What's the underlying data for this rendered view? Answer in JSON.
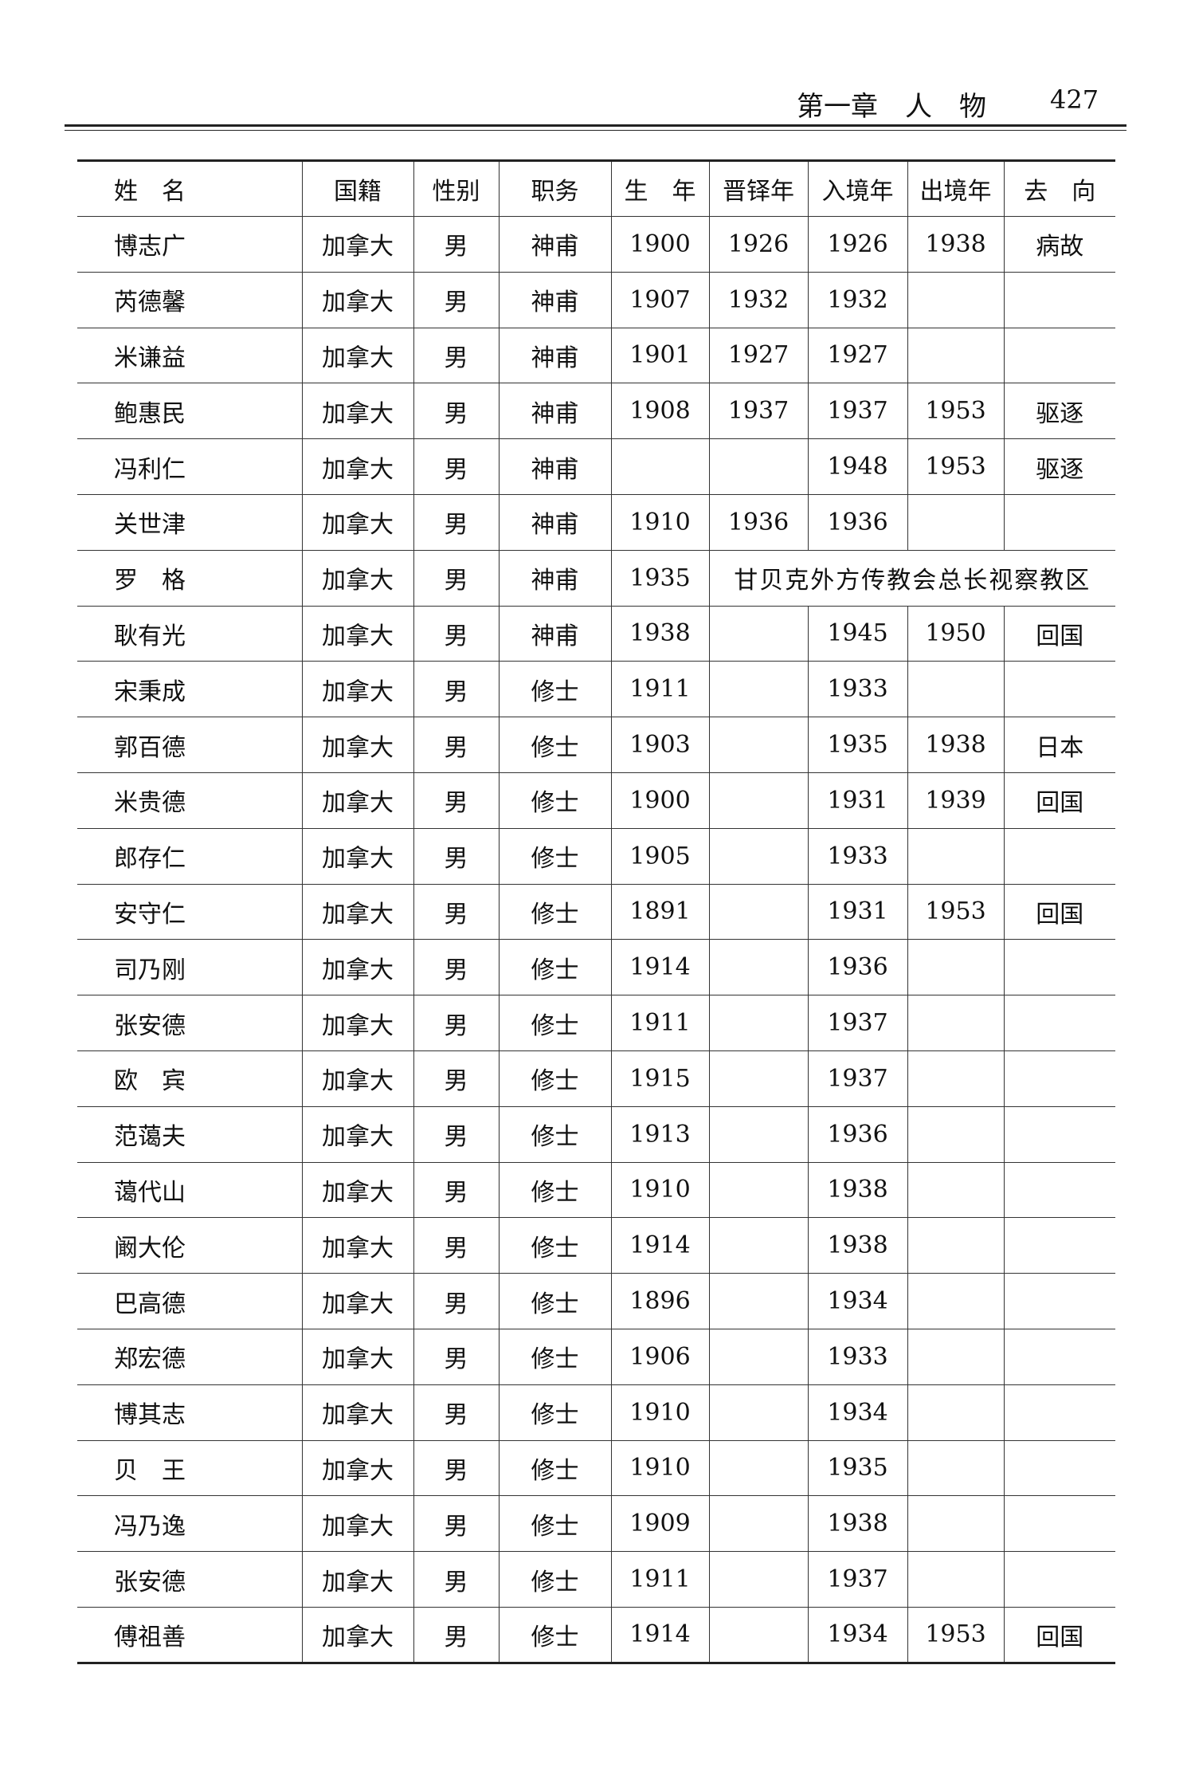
{
  "header": {
    "chapter": "第一章　人　物",
    "page": "427"
  },
  "table": {
    "columns": [
      "姓　名",
      "国籍",
      "性别",
      "职务",
      "生　年",
      "晋铎年",
      "入境年",
      "出境年",
      "去　向"
    ],
    "rows": [
      {
        "name": "博志广",
        "nationality": "加拿大",
        "gender": "男",
        "role": "神甫",
        "birth": 1900,
        "ordained": 1926,
        "entry": 1926,
        "exit": 1938,
        "destination": "病故"
      },
      {
        "name": "芮德馨",
        "nationality": "加拿大",
        "gender": "男",
        "role": "神甫",
        "birth": 1907,
        "ordained": 1932,
        "entry": 1932
      },
      {
        "name": "米谦益",
        "nationality": "加拿大",
        "gender": "男",
        "role": "神甫",
        "birth": 1901,
        "ordained": 1927,
        "entry": 1927
      },
      {
        "name": "鲍惠民",
        "nationality": "加拿大",
        "gender": "男",
        "role": "神甫",
        "birth": 1908,
        "ordained": 1937,
        "entry": 1937,
        "exit": 1953,
        "destination": "驱逐"
      },
      {
        "name": "冯利仁",
        "nationality": "加拿大",
        "gender": "男",
        "role": "神甫",
        "entry": 1948,
        "exit": 1953,
        "destination": "驱逐"
      },
      {
        "name": "关世津",
        "nationality": "加拿大",
        "gender": "男",
        "role": "神甫",
        "birth": 1910,
        "ordained": 1936,
        "entry": 1936
      },
      {
        "name": "罗　格",
        "nationality": "加拿大",
        "gender": "男",
        "role": "神甫",
        "birth": 1935,
        "note": "甘贝克外方传教会总长视察教区"
      },
      {
        "name": "耿有光",
        "nationality": "加拿大",
        "gender": "男",
        "role": "神甫",
        "birth": 1938,
        "entry": 1945,
        "exit": 1950,
        "destination": "回国"
      },
      {
        "name": "宋秉成",
        "nationality": "加拿大",
        "gender": "男",
        "role": "修士",
        "birth": 1911,
        "entry": 1933
      },
      {
        "name": "郭百德",
        "nationality": "加拿大",
        "gender": "男",
        "role": "修士",
        "birth": 1903,
        "entry": 1935,
        "exit": 1938,
        "destination": "日本"
      },
      {
        "name": "米贵德",
        "nationality": "加拿大",
        "gender": "男",
        "role": "修士",
        "birth": 1900,
        "entry": 1931,
        "exit": 1939,
        "destination": "回国"
      },
      {
        "name": "郎存仁",
        "nationality": "加拿大",
        "gender": "男",
        "role": "修士",
        "birth": 1905,
        "entry": 1933
      },
      {
        "name": "安守仁",
        "nationality": "加拿大",
        "gender": "男",
        "role": "修士",
        "birth": 1891,
        "entry": 1931,
        "exit": 1953,
        "destination": "回国"
      },
      {
        "name": "司乃刚",
        "nationality": "加拿大",
        "gender": "男",
        "role": "修士",
        "birth": 1914,
        "entry": 1936
      },
      {
        "name": "张安德",
        "nationality": "加拿大",
        "gender": "男",
        "role": "修士",
        "birth": 1911,
        "entry": 1937
      },
      {
        "name": "欧　宾",
        "nationality": "加拿大",
        "gender": "男",
        "role": "修士",
        "birth": 1915,
        "entry": 1937
      },
      {
        "name": "范蔼夫",
        "nationality": "加拿大",
        "gender": "男",
        "role": "修士",
        "birth": 1913,
        "entry": 1936
      },
      {
        "name": "蔼代山",
        "nationality": "加拿大",
        "gender": "男",
        "role": "修士",
        "birth": 1910,
        "entry": 1938
      },
      {
        "name": "阚大伦",
        "nationality": "加拿大",
        "gender": "男",
        "role": "修士",
        "birth": 1914,
        "entry": 1938
      },
      {
        "name": "巴高德",
        "nationality": "加拿大",
        "gender": "男",
        "role": "修士",
        "birth": 1896,
        "entry": 1934
      },
      {
        "name": "郑宏德",
        "nationality": "加拿大",
        "gender": "男",
        "role": "修士",
        "birth": 1906,
        "entry": 1933
      },
      {
        "name": "博其志",
        "nationality": "加拿大",
        "gender": "男",
        "role": "修士",
        "birth": 1910,
        "entry": 1934
      },
      {
        "name": "贝　王",
        "nationality": "加拿大",
        "gender": "男",
        "role": "修士",
        "birth": 1910,
        "entry": 1935
      },
      {
        "name": "冯乃逸",
        "nationality": "加拿大",
        "gender": "男",
        "role": "修士",
        "birth": 1909,
        "entry": 1938
      },
      {
        "name": "张安德",
        "nationality": "加拿大",
        "gender": "男",
        "role": "修士",
        "birth": 1911,
        "entry": 1937
      },
      {
        "name": "傅祖善",
        "nationality": "加拿大",
        "gender": "男",
        "role": "修士",
        "birth": 1914,
        "entry": 1934,
        "exit": 1953,
        "destination": "回国"
      }
    ]
  }
}
